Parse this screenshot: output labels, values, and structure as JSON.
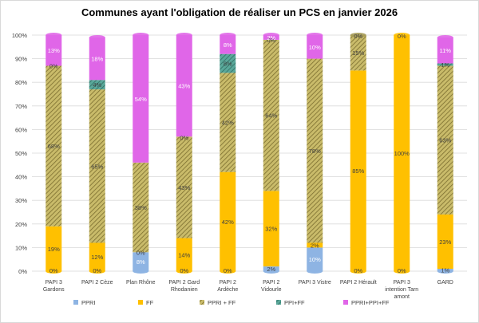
{
  "chart_data": {
    "type": "bar",
    "stacked": true,
    "percent": true,
    "title": "Communes ayant l'obligation de réaliser un PCS en janvier 2026",
    "categories": [
      [
        "PAPI 3",
        "Gardons"
      ],
      [
        "PAPI 2 Cèze"
      ],
      [
        "Plan Rhône"
      ],
      [
        "PAPI 2 Gard",
        "Rhodanien"
      ],
      [
        "PAPI 2",
        "Ardèche"
      ],
      [
        "PAPI 2",
        "Vidourle"
      ],
      [
        "PAPI 3 Vistre"
      ],
      [
        "PAPI 2 Hérault"
      ],
      [
        "PAPI 3",
        "intention Tarn",
        "amont"
      ],
      [
        "GARD"
      ]
    ],
    "ylim": [
      0,
      100
    ],
    "yticks": [
      "0%",
      "10%",
      "20%",
      "30%",
      "40%",
      "50%",
      "60%",
      "70%",
      "80%",
      "90%",
      "100%"
    ],
    "series": [
      {
        "name": "PPRI",
        "color": "#8eb4e3",
        "values": [
          0,
          0,
          8,
          0,
          0,
          2,
          10,
          0,
          0,
          1
        ],
        "labels": [
          "0%",
          "0%",
          "8%",
          "0%",
          "0%",
          "2%",
          "10%",
          "0%",
          "0%",
          "1%"
        ]
      },
      {
        "name": "FF",
        "color": "#ffc000",
        "values": [
          19,
          12,
          0,
          14,
          42,
          32,
          2,
          85,
          100,
          23
        ],
        "labels": [
          "19%",
          "12%",
          "0%",
          "14%",
          "42%",
          "32%",
          "2%",
          "85%",
          "100%",
          "23%"
        ]
      },
      {
        "name": "PPRI + FF",
        "color": "#b3a86a",
        "values": [
          68,
          65,
          38,
          43,
          42,
          64,
          78,
          15,
          0,
          63
        ],
        "labels": [
          "68%",
          "65%",
          "38%",
          "43%",
          "42%",
          "64%",
          "78%",
          "15%",
          "",
          "63%"
        ]
      },
      {
        "name": "PPI+FF",
        "color": "#4f9a8e",
        "values": [
          0,
          4,
          0,
          0,
          8,
          0,
          0,
          0,
          0,
          1
        ],
        "labels": [
          "0%",
          "4%",
          "",
          "",
          "8%",
          "0%",
          "",
          "",
          "",
          "1%"
        ]
      },
      {
        "name": "PPRI+PPI+FF",
        "color": "#e066e8",
        "values": [
          13,
          18,
          54,
          43,
          8,
          2,
          10,
          0,
          0,
          11
        ],
        "labels": [
          "13%",
          "18%",
          "54%",
          "43%",
          "8%",
          "2%",
          "10%",
          "0%",
          "0%",
          "11%"
        ]
      }
    ],
    "extra_labels": [
      {
        "category": 3,
        "text": "0%"
      }
    ],
    "legend_position": "bottom"
  }
}
